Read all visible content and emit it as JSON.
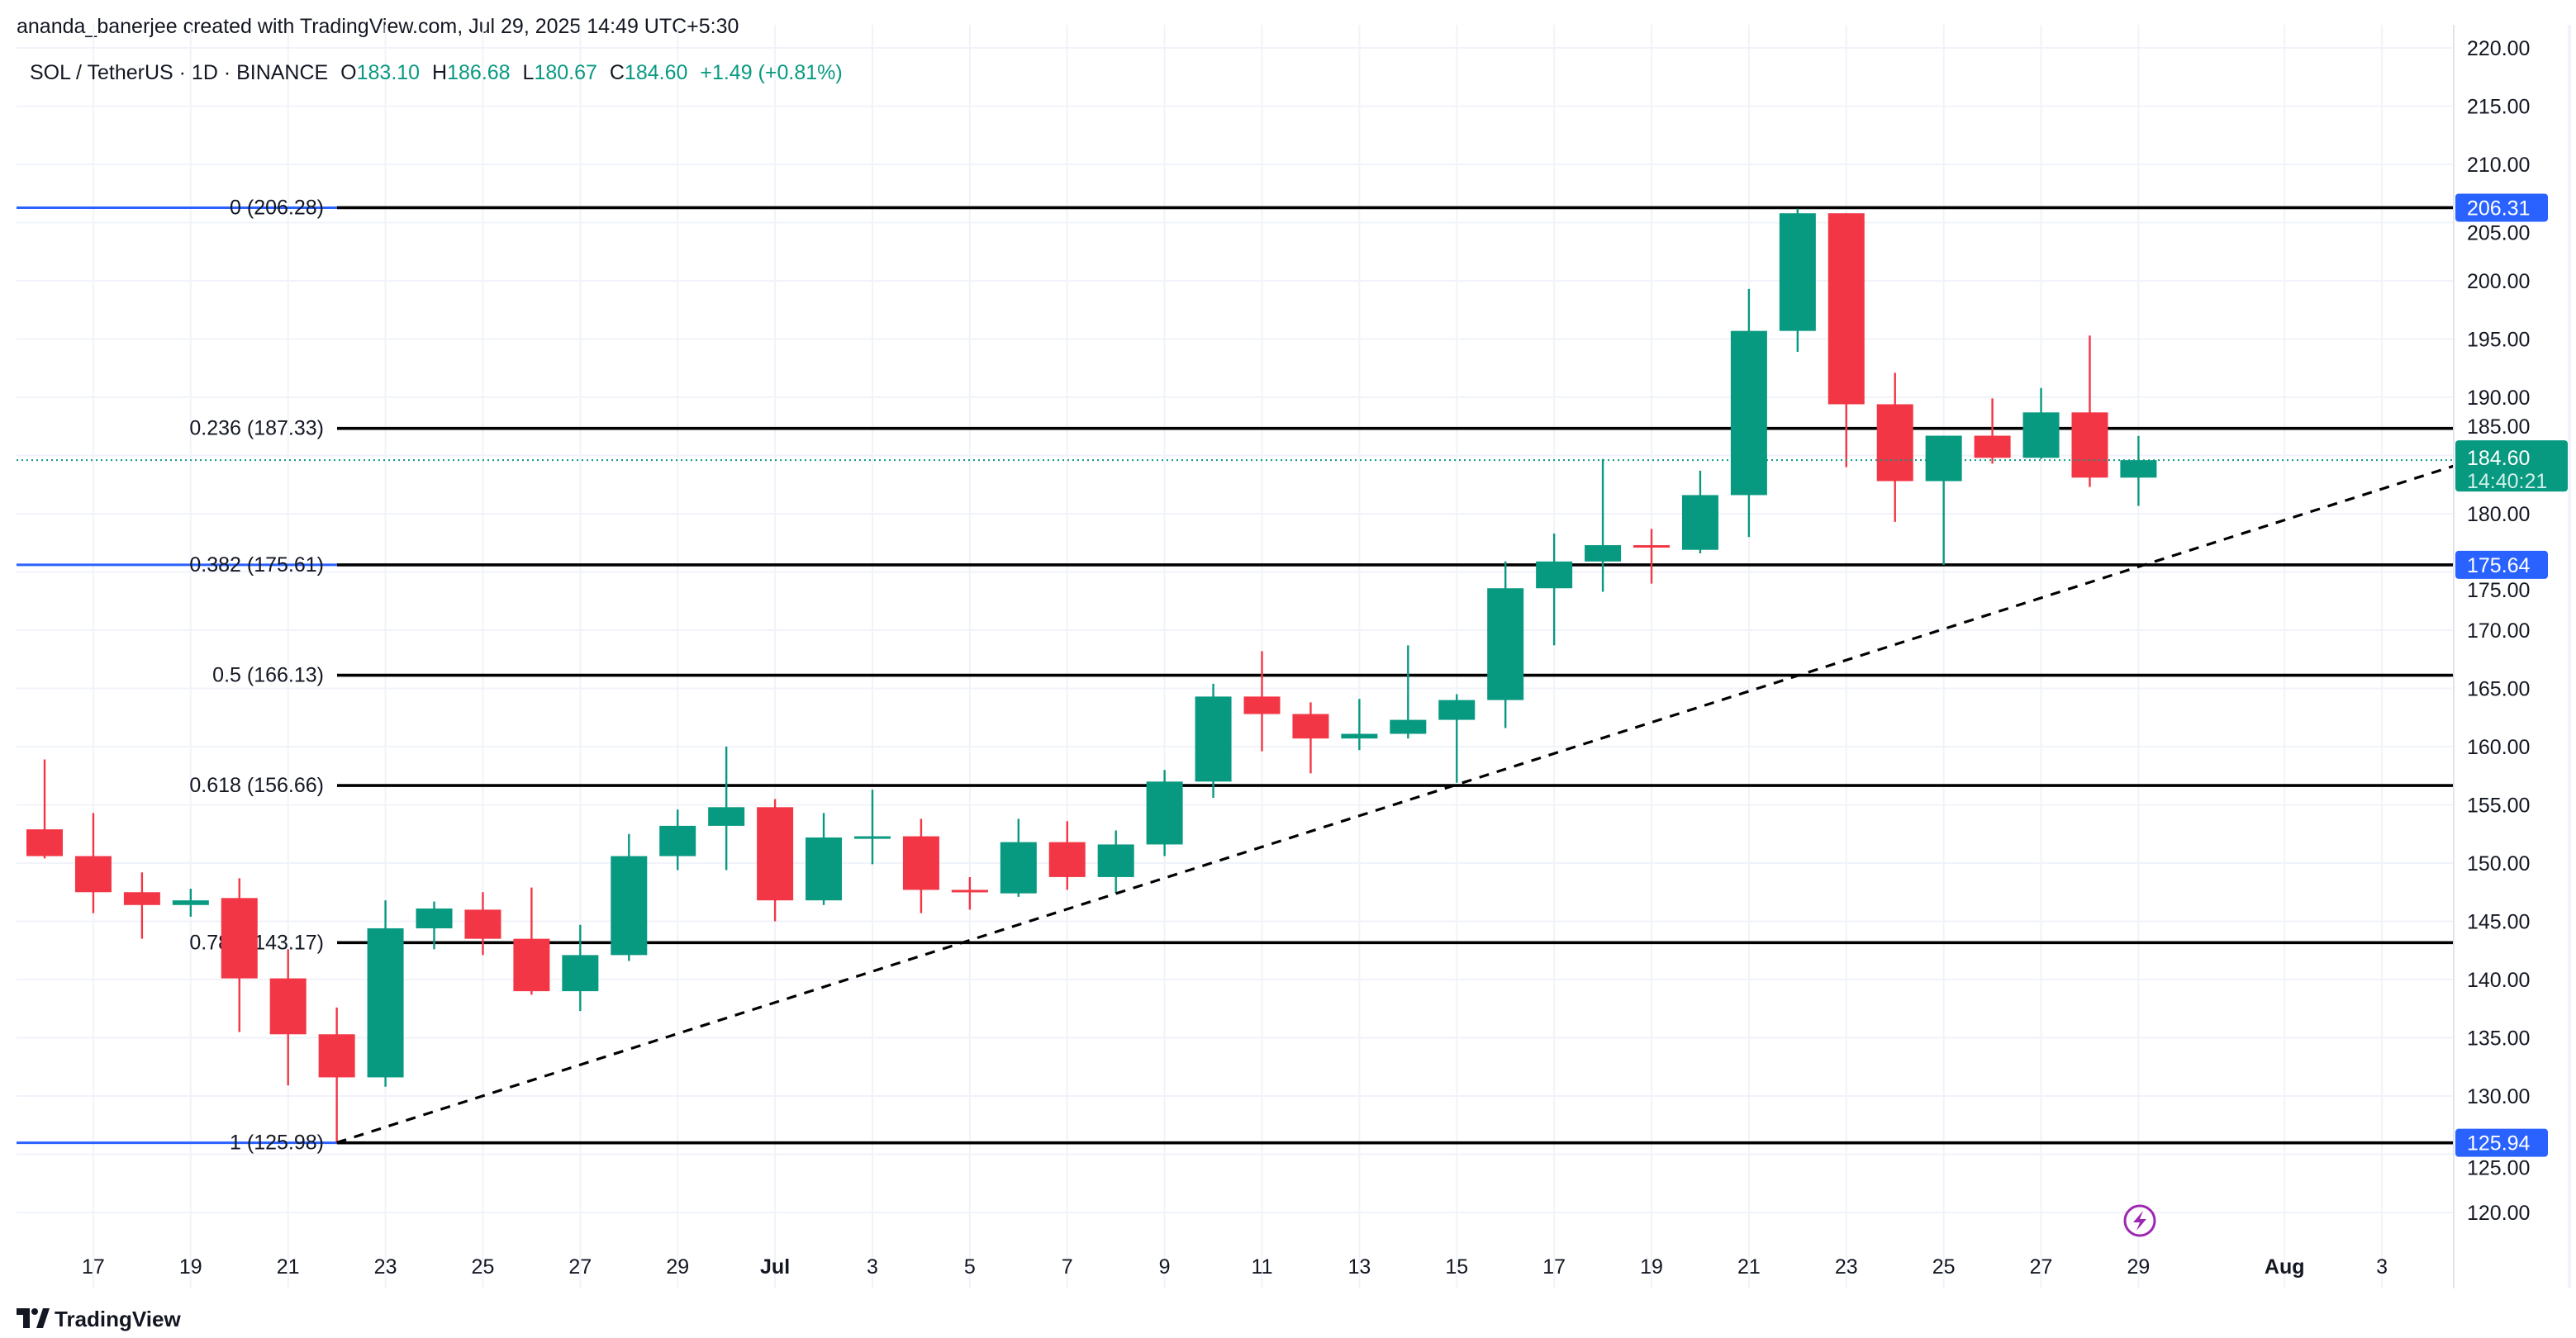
{
  "attribution": "ananda_banerjee created with TradingView.com, Jul 29, 2025 14:49 UTC+5:30",
  "legend": {
    "symbol": "SOL / TetherUS · 1D · BINANCE",
    "o_label": "O",
    "o": "183.10",
    "h_label": "H",
    "h": "186.68",
    "l_label": "L",
    "l": "180.67",
    "c_label": "C",
    "c": "184.60",
    "change": "+1.49 (+0.81%)"
  },
  "logo": "TradingView",
  "colors": {
    "up": "#089981",
    "down": "#f23645",
    "fib_anchor": "#2962ff",
    "fib_line": "#000000",
    "grid": "#f0f3fa",
    "alert": "#9c27b0"
  },
  "icons": {
    "alert": "lightning-icon",
    "logo": "tradingview-logo-icon"
  },
  "chart_data": {
    "type": "candlestick",
    "title": "SOL / TetherUS · 1D · BINANCE",
    "ylim": [
      118,
      222
    ],
    "y_ticks": [
      "120.00",
      "125.00",
      "130.00",
      "135.00",
      "140.00",
      "145.00",
      "150.00",
      "155.00",
      "160.00",
      "165.00",
      "170.00",
      "175.00",
      "180.00",
      "185.00",
      "190.00",
      "195.00",
      "200.00",
      "205.00",
      "210.00",
      "215.00",
      "220.00"
    ],
    "x_tick_labels": [
      "17",
      "19",
      "21",
      "23",
      "25",
      "27",
      "29",
      "Jul",
      "3",
      "5",
      "7",
      "9",
      "11",
      "13",
      "15",
      "17",
      "19",
      "21",
      "23",
      "25",
      "27",
      "29",
      "Aug",
      "3"
    ],
    "x_tick_dates": [
      "2025-06-17",
      "2025-06-19",
      "2025-06-21",
      "2025-06-23",
      "2025-06-25",
      "2025-06-27",
      "2025-06-29",
      "2025-07-01",
      "2025-07-03",
      "2025-07-05",
      "2025-07-07",
      "2025-07-09",
      "2025-07-11",
      "2025-07-13",
      "2025-07-15",
      "2025-07-17",
      "2025-07-19",
      "2025-07-21",
      "2025-07-23",
      "2025-07-25",
      "2025-07-27",
      "2025-07-29",
      "2025-08-01",
      "2025-08-03"
    ],
    "grid": true,
    "candles": [
      {
        "date": "2025-06-16",
        "o": 152.9,
        "h": 158.9,
        "l": 150.4,
        "c": 150.6
      },
      {
        "date": "2025-06-17",
        "o": 150.6,
        "h": 154.3,
        "l": 145.7,
        "c": 147.5
      },
      {
        "date": "2025-06-18",
        "o": 147.5,
        "h": 149.2,
        "l": 143.5,
        "c": 146.4
      },
      {
        "date": "2025-06-19",
        "o": 146.4,
        "h": 147.8,
        "l": 145.4,
        "c": 146.8
      },
      {
        "date": "2025-06-20",
        "o": 147.0,
        "h": 148.7,
        "l": 135.5,
        "c": 140.1
      },
      {
        "date": "2025-06-21",
        "o": 140.1,
        "h": 142.6,
        "l": 130.9,
        "c": 135.3
      },
      {
        "date": "2025-06-22",
        "o": 135.3,
        "h": 137.6,
        "l": 126.0,
        "c": 131.6
      },
      {
        "date": "2025-06-23",
        "o": 131.6,
        "h": 146.8,
        "l": 130.8,
        "c": 144.4
      },
      {
        "date": "2025-06-24",
        "o": 144.4,
        "h": 146.7,
        "l": 142.6,
        "c": 146.1
      },
      {
        "date": "2025-06-25",
        "o": 146.0,
        "h": 147.5,
        "l": 142.1,
        "c": 143.5
      },
      {
        "date": "2025-06-26",
        "o": 143.5,
        "h": 147.9,
        "l": 138.7,
        "c": 139.0
      },
      {
        "date": "2025-06-27",
        "o": 139.0,
        "h": 144.7,
        "l": 137.3,
        "c": 142.1
      },
      {
        "date": "2025-06-28",
        "o": 142.1,
        "h": 152.5,
        "l": 141.6,
        "c": 150.6
      },
      {
        "date": "2025-06-29",
        "o": 150.6,
        "h": 154.6,
        "l": 149.4,
        "c": 153.2
      },
      {
        "date": "2025-06-30",
        "o": 153.2,
        "h": 160.0,
        "l": 149.4,
        "c": 154.8
      },
      {
        "date": "2025-07-01",
        "o": 154.8,
        "h": 155.5,
        "l": 145.0,
        "c": 146.8
      },
      {
        "date": "2025-07-02",
        "o": 146.8,
        "h": 154.3,
        "l": 146.4,
        "c": 152.2
      },
      {
        "date": "2025-07-03",
        "o": 152.2,
        "h": 156.3,
        "l": 149.9,
        "c": 152.3
      },
      {
        "date": "2025-07-04",
        "o": 152.3,
        "h": 153.8,
        "l": 145.7,
        "c": 147.7
      },
      {
        "date": "2025-07-05",
        "o": 147.7,
        "h": 148.8,
        "l": 146.0,
        "c": 147.6
      },
      {
        "date": "2025-07-06",
        "o": 147.4,
        "h": 153.8,
        "l": 147.1,
        "c": 151.8
      },
      {
        "date": "2025-07-07",
        "o": 151.8,
        "h": 153.6,
        "l": 147.7,
        "c": 148.8
      },
      {
        "date": "2025-07-08",
        "o": 148.8,
        "h": 152.8,
        "l": 147.4,
        "c": 151.6
      },
      {
        "date": "2025-07-09",
        "o": 151.6,
        "h": 158.0,
        "l": 150.6,
        "c": 157.0
      },
      {
        "date": "2025-07-10",
        "o": 157.0,
        "h": 165.4,
        "l": 155.6,
        "c": 164.3
      },
      {
        "date": "2025-07-11",
        "o": 164.3,
        "h": 168.2,
        "l": 159.6,
        "c": 162.8
      },
      {
        "date": "2025-07-12",
        "o": 162.8,
        "h": 163.8,
        "l": 157.7,
        "c": 160.7
      },
      {
        "date": "2025-07-13",
        "o": 160.7,
        "h": 164.1,
        "l": 159.7,
        "c": 161.1
      },
      {
        "date": "2025-07-14",
        "o": 161.1,
        "h": 168.7,
        "l": 160.7,
        "c": 162.3
      },
      {
        "date": "2025-07-15",
        "o": 162.3,
        "h": 164.5,
        "l": 156.9,
        "c": 164.0
      },
      {
        "date": "2025-07-16",
        "o": 164.0,
        "h": 175.9,
        "l": 161.6,
        "c": 173.6
      },
      {
        "date": "2025-07-17",
        "o": 173.6,
        "h": 178.3,
        "l": 168.7,
        "c": 175.9
      },
      {
        "date": "2025-07-18",
        "o": 175.9,
        "h": 184.7,
        "l": 173.3,
        "c": 177.3
      },
      {
        "date": "2025-07-19",
        "o": 177.3,
        "h": 178.7,
        "l": 174.0,
        "c": 177.2
      },
      {
        "date": "2025-07-20",
        "o": 176.9,
        "h": 183.7,
        "l": 176.6,
        "c": 181.6
      },
      {
        "date": "2025-07-21",
        "o": 181.6,
        "h": 199.3,
        "l": 178.0,
        "c": 195.7
      },
      {
        "date": "2025-07-22",
        "o": 195.7,
        "h": 206.2,
        "l": 193.9,
        "c": 205.8
      },
      {
        "date": "2025-07-23",
        "o": 205.8,
        "h": 205.8,
        "l": 184.0,
        "c": 189.4
      },
      {
        "date": "2025-07-24",
        "o": 189.4,
        "h": 192.1,
        "l": 179.3,
        "c": 182.8
      },
      {
        "date": "2025-07-25",
        "o": 182.8,
        "h": 186.7,
        "l": 175.6,
        "c": 186.7
      },
      {
        "date": "2025-07-26",
        "o": 186.7,
        "h": 189.9,
        "l": 184.3,
        "c": 184.8
      },
      {
        "date": "2025-07-27",
        "o": 184.8,
        "h": 190.8,
        "l": 184.7,
        "c": 188.7
      },
      {
        "date": "2025-07-28",
        "o": 188.7,
        "h": 195.3,
        "l": 182.3,
        "c": 183.1
      },
      {
        "date": "2025-07-29",
        "o": 183.1,
        "h": 186.68,
        "l": 180.67,
        "c": 184.6
      }
    ],
    "fib_levels": [
      {
        "ratio": "0",
        "price": 206.28,
        "label": "0 (206.28)",
        "axis_label": "206.31",
        "anchor": true
      },
      {
        "ratio": "0.236",
        "price": 187.33,
        "label": "0.236 (187.33)"
      },
      {
        "ratio": "0.382",
        "price": 175.61,
        "label": "0.382 (175.61)",
        "axis_label": "175.64",
        "anchor": true
      },
      {
        "ratio": "0.5",
        "price": 166.13,
        "label": "0.5 (166.13)"
      },
      {
        "ratio": "0.618",
        "price": 156.66,
        "label": "0.618 (156.66)"
      },
      {
        "ratio": "0.786",
        "price": 143.17,
        "label": "0.786 (143.17)"
      },
      {
        "ratio": "1",
        "price": 125.98,
        "label": "1 (125.98)",
        "axis_label": "125.94",
        "anchor": true
      }
    ],
    "trendline": {
      "style": "dashed",
      "from": {
        "date": "2025-06-22",
        "price": 126.0
      },
      "to": {
        "date": "2025-08-04",
        "price": 184.1
      }
    },
    "last_price": {
      "price": 184.6,
      "label": "184.60",
      "countdown": "14:40:21"
    }
  }
}
